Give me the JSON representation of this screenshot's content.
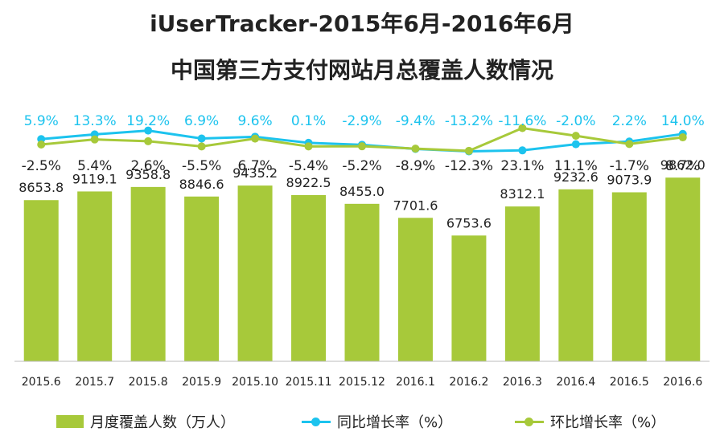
{
  "title_line1": "iUserTracker-2015年6月-2016年6月",
  "title_line2": "中国第三方支付网站月总覆盖人数情况",
  "colors": {
    "bar": "#a7c93a",
    "yoy": "#1cc3ee",
    "mom": "#a7c93a",
    "axis": "#bbbbbb",
    "text": "#222222"
  },
  "chart_data": {
    "type": "bar",
    "categories": [
      "2015.6",
      "2015.7",
      "2015.8",
      "2015.9",
      "2015.10",
      "2015.11",
      "2015.12",
      "2016.1",
      "2016.2",
      "2016.3",
      "2016.4",
      "2016.5",
      "2016.6"
    ],
    "series": [
      {
        "name": "月度覆盖人数（万人）",
        "type": "bar",
        "values": [
          8653.8,
          9119.1,
          9358.8,
          8846.6,
          9435.2,
          8922.5,
          8455.0,
          7701.6,
          6753.6,
          8312.1,
          9232.6,
          9073.9,
          9862.0
        ],
        "labels": [
          "8653.8",
          "9119.1",
          "9358.8",
          "8846.6",
          "9435.2",
          "8922.5",
          "8455.0",
          "7701.6",
          "6753.6",
          "8312.1",
          "9232.6",
          "9073.9",
          "9862.0"
        ]
      },
      {
        "name": "同比增长率（%）",
        "type": "line",
        "values": [
          5.9,
          13.3,
          19.2,
          6.9,
          9.6,
          0.1,
          -2.9,
          -9.4,
          -13.2,
          -11.6,
          -2.0,
          2.2,
          14.0
        ],
        "labels": [
          "5.9%",
          "13.3%",
          "19.2%",
          "6.9%",
          "9.6%",
          "0.1%",
          "-2.9%",
          "-9.4%",
          "-13.2%",
          "-11.6%",
          "-2.0%",
          "2.2%",
          "14.0%"
        ]
      },
      {
        "name": "环比增长率（%）",
        "type": "line",
        "values": [
          -2.5,
          5.4,
          2.6,
          -5.5,
          6.7,
          -5.4,
          -5.2,
          -8.9,
          -12.3,
          23.1,
          11.1,
          -1.7,
          8.7
        ],
        "labels": [
          "-2.5%",
          "5.4%",
          "2.6%",
          "-5.5%",
          "6.7%",
          "-5.4%",
          "-5.2%",
          "-8.9%",
          "-12.3%",
          "23.1%",
          "11.1%",
          "-1.7%",
          "8.7%"
        ]
      }
    ],
    "ylim_bars": [
      0,
      10000
    ],
    "grid": false,
    "legend_position": "bottom"
  }
}
